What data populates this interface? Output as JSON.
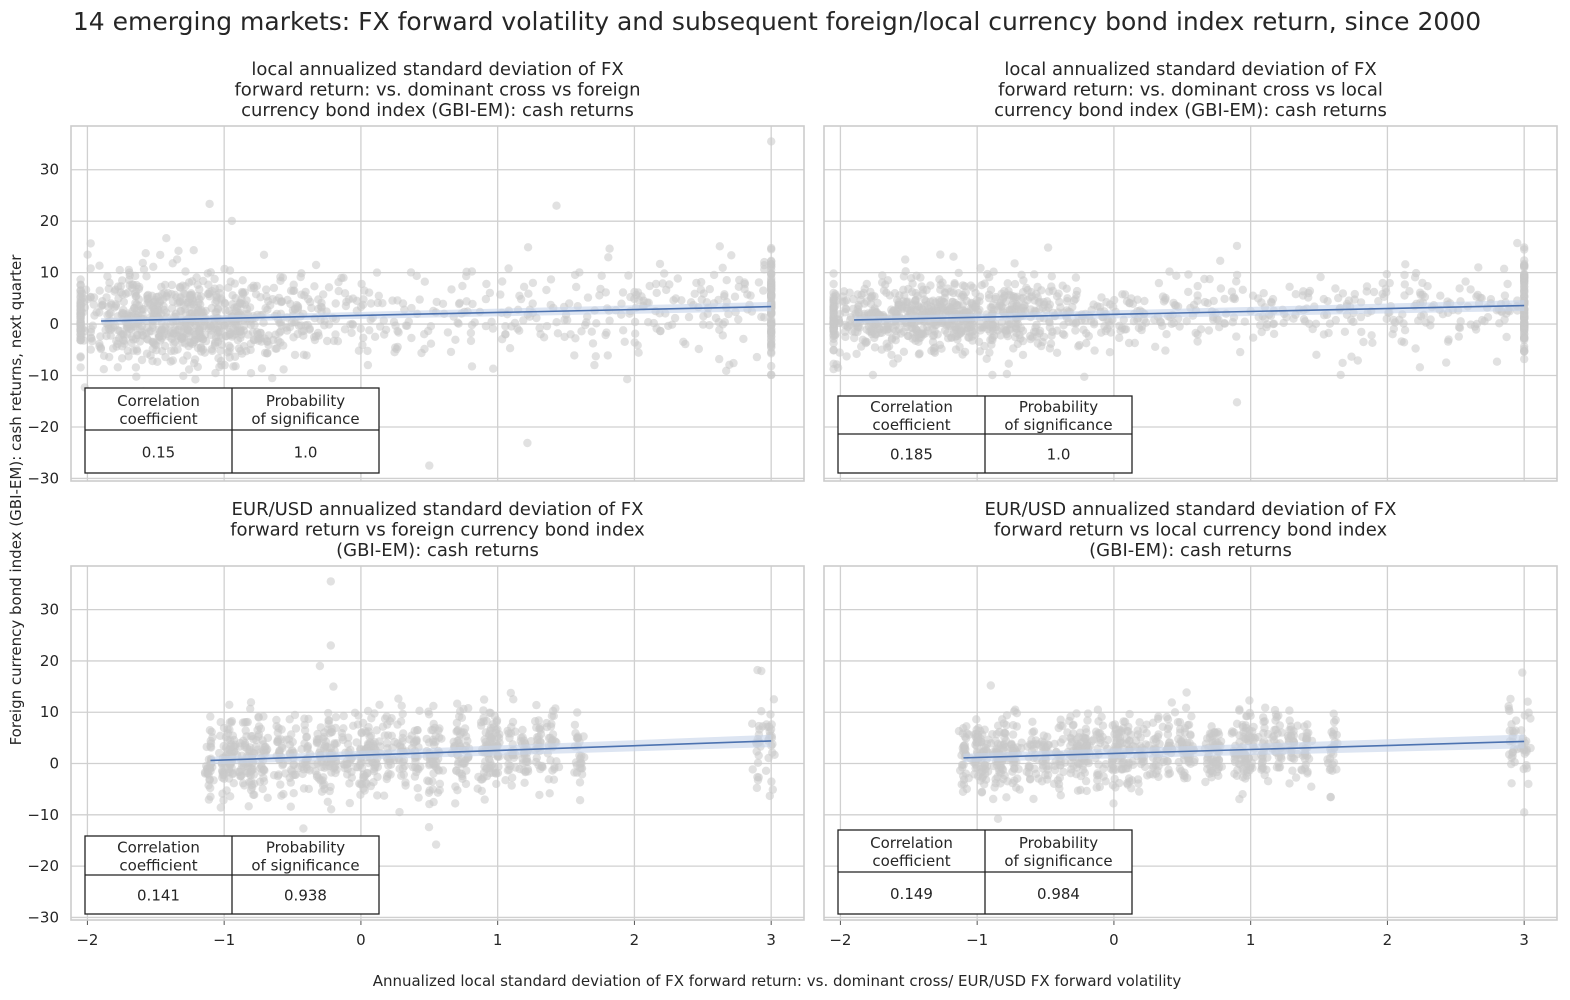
{
  "figure": {
    "title": "14 emerging markets: FX forward volatility and subsequent foreign/local currency bond index return, since 2000",
    "xlabel": "Annualized local standard deviation of FX forward return: vs. dominant cross/ EUR/USD FX forward volatility",
    "ylabel": "Foreign currency bond index (GBI-EM): cash returns, next quarter"
  },
  "colors": {
    "point": "#c8c8c8",
    "line": "#4c72b0",
    "band": "#c6d4ea",
    "grid": "#d0d0d0",
    "frame": "#cccccc",
    "text": "#262626"
  },
  "chart_data": [
    {
      "type": "scatter",
      "title_lines": [
        "local annualized standard deviation of FX",
        "forward return: vs. dominant cross vs foreign",
        "currency bond index (GBI-EM): cash returns"
      ],
      "xlim": [
        -2.12,
        3.24
      ],
      "ylim": [
        -30.5,
        38.5
      ],
      "xticks": [
        -2,
        -1,
        0,
        1,
        2,
        3
      ],
      "yticks": [
        -30,
        -20,
        -10,
        0,
        10,
        20,
        30
      ],
      "points_x_range": [
        -2.0,
        3.0
      ],
      "points_note": "approx. 1200 observations, dense cluster at x = 3",
      "regression": {
        "x": [
          -1.9,
          3.0
        ],
        "y": [
          0.6,
          3.4
        ]
      },
      "table": {
        "headers": [
          "Correlation\ncoefficient",
          "Probability\nof significance"
        ],
        "values": [
          "0.15",
          "1.0"
        ]
      }
    },
    {
      "type": "scatter",
      "title_lines": [
        "local annualized standard deviation of FX",
        "forward return: vs. dominant cross vs local",
        "currency bond index (GBI-EM): cash returns"
      ],
      "xlim": [
        -2.12,
        3.24
      ],
      "ylim": [
        -30.5,
        38.5
      ],
      "xticks": [
        -2,
        -1,
        0,
        1,
        2,
        3
      ],
      "yticks": [
        -30,
        -20,
        -10,
        0,
        10,
        20,
        30
      ],
      "points_x_range": [
        -2.0,
        3.0
      ],
      "points_note": "approx. 1200 observations, dense cluster at x = 3",
      "regression": {
        "x": [
          -1.9,
          3.0
        ],
        "y": [
          0.8,
          3.6
        ]
      },
      "table": {
        "headers": [
          "Correlation\ncoefficient",
          "Probability\nof significance"
        ],
        "values": [
          "0.185",
          "1.0"
        ]
      }
    },
    {
      "type": "scatter",
      "title_lines": [
        "EUR/USD annualized standard deviation of FX",
        "forward return vs foreign currency bond index",
        "(GBI-EM): cash returns"
      ],
      "xlim": [
        -2.12,
        3.24
      ],
      "ylim": [
        -30.5,
        38.5
      ],
      "xticks": [
        -2,
        -1,
        0,
        1,
        2,
        3
      ],
      "yticks": [
        -30,
        -20,
        -10,
        0,
        10,
        20,
        30
      ],
      "points_x_range": [
        -1.1,
        3.0
      ],
      "points_note": "observations in vertical columns at discrete x values",
      "regression": {
        "x": [
          -1.1,
          3.0
        ],
        "y": [
          0.6,
          4.4
        ]
      },
      "table": {
        "headers": [
          "Correlation\ncoefficient",
          "Probability\nof significance"
        ],
        "values": [
          "0.141",
          "0.938"
        ]
      }
    },
    {
      "type": "scatter",
      "title_lines": [
        "EUR/USD annualized standard deviation of FX",
        "forward return vs local currency bond index",
        "(GBI-EM): cash returns"
      ],
      "xlim": [
        -2.12,
        3.24
      ],
      "ylim": [
        -30.5,
        38.5
      ],
      "xticks": [
        -2,
        -1,
        0,
        1,
        2,
        3
      ],
      "yticks": [
        -30,
        -20,
        -10,
        0,
        10,
        20,
        30
      ],
      "points_x_range": [
        -1.1,
        3.0
      ],
      "points_note": "observations in vertical columns at discrete x values",
      "regression": {
        "x": [
          -1.1,
          3.0
        ],
        "y": [
          1.1,
          4.3
        ]
      },
      "table": {
        "headers": [
          "Correlation\ncoefficient",
          "Probability\nof significance"
        ],
        "values": [
          "0.149",
          "0.984"
        ]
      }
    }
  ]
}
